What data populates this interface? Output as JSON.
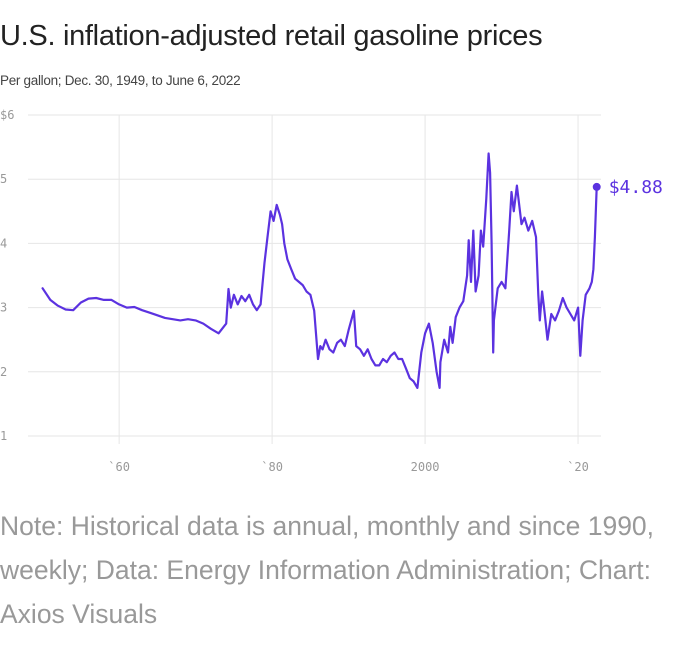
{
  "header": {
    "title": "U.S. inflation-adjusted retail gasoline prices",
    "subtitle": "Per gallon; Dec. 30, 1949, to June 6, 2022"
  },
  "footer": {
    "note": "Note: Historical data is annual, monthly and since 1990, weekly; Data: Energy Information Administration; Chart: Axios Visuals"
  },
  "colors": {
    "line": "#5b32e0",
    "grid": "#e6e6e6",
    "tick_text": "#999999"
  },
  "chart_data": {
    "type": "line",
    "title": "U.S. inflation-adjusted retail gasoline prices",
    "subtitle": "Per gallon; Dec. 30, 1949, to June 6, 2022",
    "xlim": [
      1949,
      2023
    ],
    "ylim": [
      1,
      6
    ],
    "grid": true,
    "x_ticks": [
      {
        "value": 1960,
        "label": "`60"
      },
      {
        "value": 1980,
        "label": "`80"
      },
      {
        "value": 2000,
        "label": "2000"
      },
      {
        "value": 2020,
        "label": "`20"
      }
    ],
    "y_ticks": [
      {
        "value": 6,
        "label": "$6"
      },
      {
        "value": 5,
        "label": "5"
      },
      {
        "value": 4,
        "label": "4"
      },
      {
        "value": 3,
        "label": "3"
      },
      {
        "value": 2,
        "label": "2"
      },
      {
        "value": 1,
        "label": "1"
      }
    ],
    "end_label": "$4.88",
    "series": [
      {
        "x": [
          1950,
          1951,
          1952,
          1953,
          1954,
          1955,
          1956,
          1957,
          1958,
          1959,
          1960,
          1961,
          1962,
          1963,
          1964,
          1965,
          1966,
          1967,
          1968,
          1969,
          1970,
          1971,
          1972,
          1973,
          1974,
          1974.3,
          1974.6,
          1975,
          1975.5,
          1976,
          1976.5,
          1977,
          1977.5,
          1978,
          1978.5,
          1979,
          1979.4,
          1979.8,
          1980.2,
          1980.6,
          1981,
          1981.3,
          1981.6,
          1982,
          1982.5,
          1983,
          1983.5,
          1984,
          1984.5,
          1985,
          1985.5,
          1986,
          1986.3,
          1986.6,
          1987,
          1987.5,
          1988,
          1988.5,
          1989,
          1989.5,
          1990,
          1990.7,
          1991,
          1991.5,
          1992,
          1992.5,
          1993,
          1993.5,
          1994,
          1994.5,
          1995,
          1995.5,
          1996,
          1996.5,
          1997,
          1997.5,
          1998,
          1998.5,
          1999,
          1999.5,
          2000,
          2000.5,
          2001,
          2001.5,
          2001.9,
          2002,
          2002.5,
          2003,
          2003.3,
          2003.6,
          2004,
          2004.5,
          2005,
          2005.5,
          2005.7,
          2006,
          2006.3,
          2006.6,
          2007,
          2007.3,
          2007.6,
          2008,
          2008.3,
          2008.5,
          2008.7,
          2008.9,
          2009,
          2009.5,
          2010,
          2010.5,
          2011,
          2011.3,
          2011.6,
          2012,
          2012.3,
          2012.6,
          2013,
          2013.5,
          2014,
          2014.5,
          2014.8,
          2015,
          2015.3,
          2015.6,
          2016,
          2016.5,
          2017,
          2017.5,
          2018,
          2018.5,
          2019,
          2019.5,
          2020,
          2020.3,
          2020.6,
          2021,
          2021.5,
          2021.8,
          2022,
          2022.2,
          2022.44
        ],
        "values": [
          3.3,
          3.12,
          3.03,
          2.97,
          2.96,
          3.08,
          3.14,
          3.15,
          3.12,
          3.12,
          3.05,
          3.0,
          3.01,
          2.96,
          2.92,
          2.88,
          2.84,
          2.82,
          2.8,
          2.82,
          2.8,
          2.75,
          2.67,
          2.6,
          2.75,
          3.29,
          3.0,
          3.2,
          3.05,
          3.18,
          3.1,
          3.2,
          3.05,
          2.96,
          3.05,
          3.7,
          4.1,
          4.5,
          4.35,
          4.6,
          4.45,
          4.3,
          4.0,
          3.75,
          3.6,
          3.45,
          3.4,
          3.35,
          3.25,
          3.2,
          2.95,
          2.2,
          2.4,
          2.35,
          2.5,
          2.35,
          2.3,
          2.45,
          2.5,
          2.4,
          2.65,
          2.95,
          2.4,
          2.35,
          2.25,
          2.35,
          2.2,
          2.1,
          2.1,
          2.2,
          2.15,
          2.25,
          2.3,
          2.2,
          2.2,
          2.05,
          1.9,
          1.85,
          1.75,
          2.3,
          2.6,
          2.75,
          2.45,
          2.0,
          1.75,
          2.15,
          2.5,
          2.3,
          2.7,
          2.45,
          2.85,
          3.0,
          3.1,
          3.5,
          4.05,
          3.4,
          4.2,
          3.25,
          3.5,
          4.2,
          3.95,
          4.7,
          5.4,
          5.1,
          4.0,
          2.3,
          2.8,
          3.3,
          3.4,
          3.3,
          4.2,
          4.8,
          4.5,
          4.9,
          4.6,
          4.3,
          4.4,
          4.2,
          4.35,
          4.1,
          3.2,
          2.8,
          3.25,
          2.95,
          2.5,
          2.9,
          2.8,
          2.95,
          3.15,
          3.0,
          2.9,
          2.8,
          3.0,
          2.25,
          2.8,
          3.2,
          3.3,
          3.4,
          3.6,
          4.1,
          4.88
        ]
      }
    ]
  }
}
